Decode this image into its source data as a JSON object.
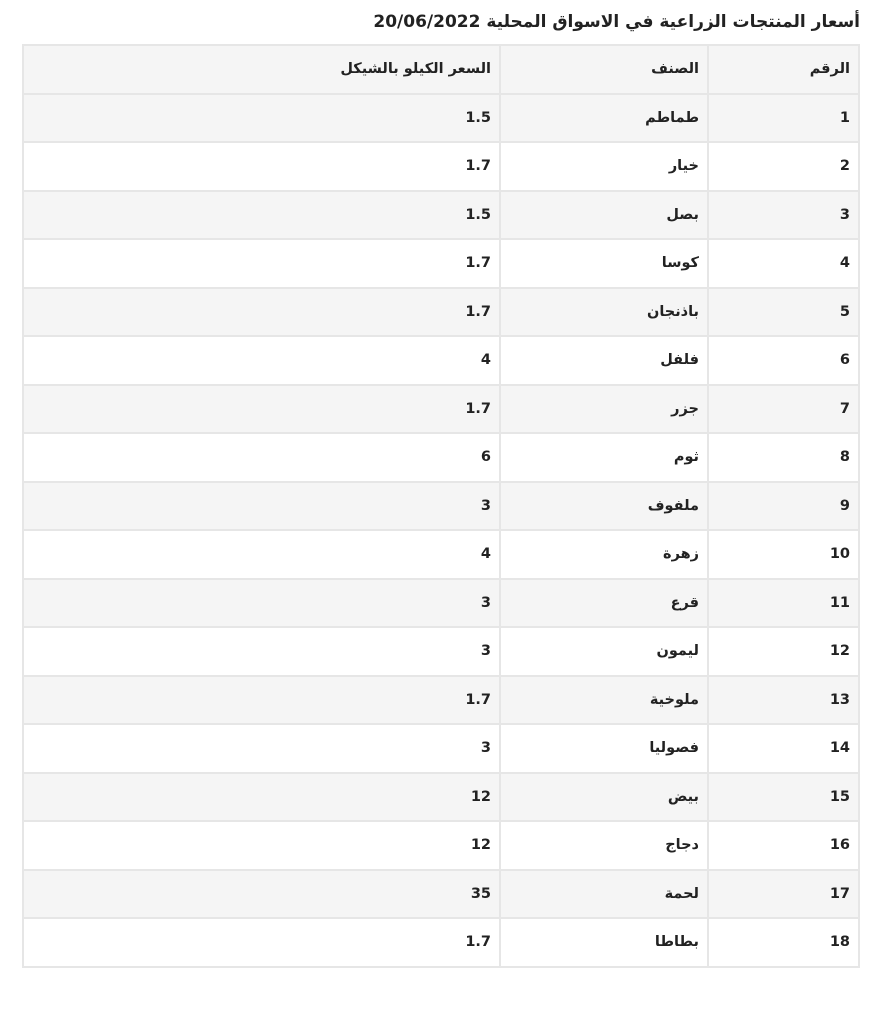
{
  "title": "أسعار المنتجات الزراعية في الاسواق المحلية 20/06/2022",
  "headers": [
    "الرقم",
    "الصنف",
    "السعر الكيلو بالشيكل"
  ],
  "rows": [
    {
      "num": "1",
      "item": "طماطم",
      "price": "1.5"
    },
    {
      "num": "2",
      "item": "خيار",
      "price": "1.7"
    },
    {
      "num": "3",
      "item": "بصل",
      "price": "1.5"
    },
    {
      "num": "4",
      "item": "كوسا",
      "price": "1.7"
    },
    {
      "num": "5",
      "item": "باذنجان",
      "price": "1.7"
    },
    {
      "num": "6",
      "item": "فلفل",
      "price": "4"
    },
    {
      "num": "7",
      "item": "جزر",
      "price": "1.7"
    },
    {
      "num": "8",
      "item": "ثوم",
      "price": "6"
    },
    {
      "num": "9",
      "item": "ملفوف",
      "price": "3"
    },
    {
      "num": "10",
      "item": "زهرة",
      "price": "4"
    },
    {
      "num": "11",
      "item": "قرع",
      "price": "3"
    },
    {
      "num": "12",
      "item": "ليمون",
      "price": "3"
    },
    {
      "num": "13",
      "item": "ملوخية",
      "price": "1.7"
    },
    {
      "num": "14",
      "item": "فصوليا",
      "price": "3"
    },
    {
      "num": "15",
      "item": "بيض",
      "price": "12"
    },
    {
      "num": "16",
      "item": "دجاج",
      "price": "12"
    },
    {
      "num": "17",
      "item": "لحمة",
      "price": "35"
    },
    {
      "num": "18",
      "item": "بطاطا",
      "price": "1.7"
    }
  ]
}
